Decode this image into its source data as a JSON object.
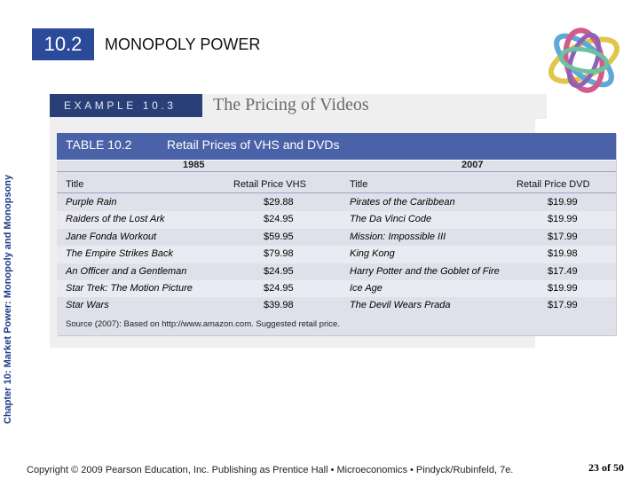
{
  "side_label": "Chapter 10: Market Power: Monopoly and Monopsony",
  "section": {
    "number": "10.2",
    "title": "MONOPOLY POWER"
  },
  "example": {
    "tag": "EXAMPLE 10.3",
    "heading": "The Pricing of Videos"
  },
  "table": {
    "number": "TABLE 10.2",
    "title": "Retail Prices of VHS and DVDs",
    "years": [
      "1985",
      "2007"
    ],
    "columns": [
      "Title",
      "Retail Price VHS",
      "Title",
      "Retail Price DVD"
    ],
    "rows": [
      [
        "Purple Rain",
        "$29.88",
        "Pirates of the Caribbean",
        "$19.99"
      ],
      [
        "Raiders of the Lost Ark",
        "$24.95",
        "The Da Vinci Code",
        "$19.99"
      ],
      [
        "Jane Fonda Workout",
        "$59.95",
        "Mission: Impossible III",
        "$17.99"
      ],
      [
        "The Empire Strikes Back",
        "$79.98",
        "King Kong",
        "$19.98"
      ],
      [
        "An Officer and a Gentleman",
        "$24.95",
        "Harry Potter and the Goblet of Fire",
        "$17.49"
      ],
      [
        "Star Trek: The Motion Picture",
        "$24.95",
        "Ice Age",
        "$19.99"
      ],
      [
        "Star Wars",
        "$39.98",
        "The Devil Wears Prada",
        "$17.99"
      ]
    ],
    "source": "Source (2007): Based on http://www.amazon.com. Suggested retail price."
  },
  "footer": "Copyright © 2009 Pearson Education, Inc. Publishing as Prentice Hall • Microeconomics • Pindyck/Rubinfeld, 7e.",
  "page": "23 of 50",
  "colors": {
    "section_box": "#2c4a9a",
    "table_header": "#4a62a8",
    "example_tag": "#2a3f78",
    "side_label": "#1d3a8a"
  }
}
